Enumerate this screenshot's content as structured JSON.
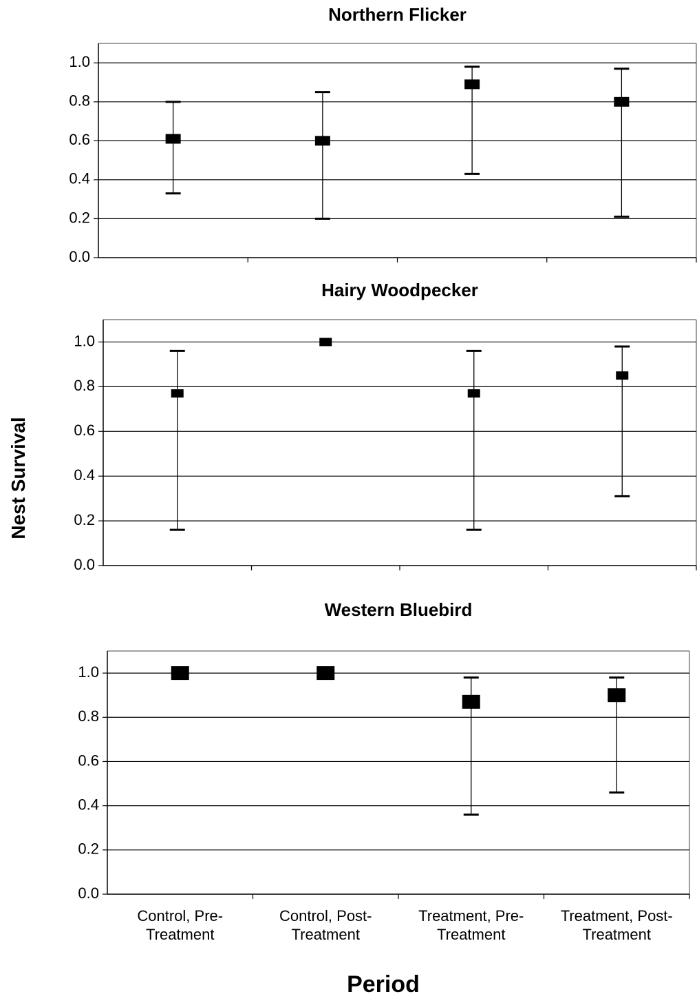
{
  "chart_data": [
    {
      "type": "scatter",
      "title": "Northern Flicker",
      "categories": [
        "Control, Pre-Treatment",
        "Control, Post-Treatment",
        "Treatment, Pre-Treatment",
        "Treatment, Post-Treatment"
      ],
      "values": [
        0.61,
        0.6,
        0.89,
        0.8
      ],
      "lower": [
        0.33,
        0.2,
        0.43,
        0.21
      ],
      "upper": [
        0.8,
        0.85,
        0.98,
        0.97
      ],
      "ylim": [
        0,
        1.1
      ],
      "yticks": [
        "0.0",
        "0.2",
        "0.4",
        "0.6",
        "0.8",
        "1.0"
      ],
      "grid": true
    },
    {
      "type": "scatter",
      "title": "Hairy Woodpecker",
      "categories": [
        "Control, Pre-Treatment",
        "Control, Post-Treatment",
        "Treatment, Pre-Treatment",
        "Treatment, Post-Treatment"
      ],
      "values": [
        0.77,
        1.0,
        0.77,
        0.85
      ],
      "lower": [
        0.16,
        null,
        0.16,
        0.31
      ],
      "upper": [
        0.96,
        null,
        0.96,
        0.98
      ],
      "ylim": [
        0,
        1.1
      ],
      "yticks": [
        "0.0",
        "0.2",
        "0.4",
        "0.6",
        "0.8",
        "1.0"
      ],
      "grid": true
    },
    {
      "type": "scatter",
      "title": "Western Bluebird",
      "categories": [
        "Control, Pre-Treatment",
        "Control, Post-Treatment",
        "Treatment, Pre-Treatment",
        "Treatment, Post-Treatment"
      ],
      "values": [
        1.0,
        1.0,
        0.87,
        0.9
      ],
      "lower": [
        null,
        null,
        0.36,
        0.46
      ],
      "upper": [
        null,
        null,
        0.98,
        0.98
      ],
      "ylim": [
        0,
        1.1
      ],
      "yticks": [
        "0.0",
        "0.2",
        "0.4",
        "0.6",
        "0.8",
        "1.0"
      ],
      "grid": true
    }
  ],
  "ylabel": "Nest Survival",
  "xlabel": "Period",
  "category_labels": [
    [
      "Control, Pre-",
      "Treatment"
    ],
    [
      "Control, Post-",
      "Treatment"
    ],
    [
      "Treatment, Pre-",
      "Treatment"
    ],
    [
      "Treatment, Post-",
      "Treatment"
    ]
  ],
  "colors": {
    "grid": "#000000",
    "frame": "#808080",
    "marker": "#000000"
  }
}
